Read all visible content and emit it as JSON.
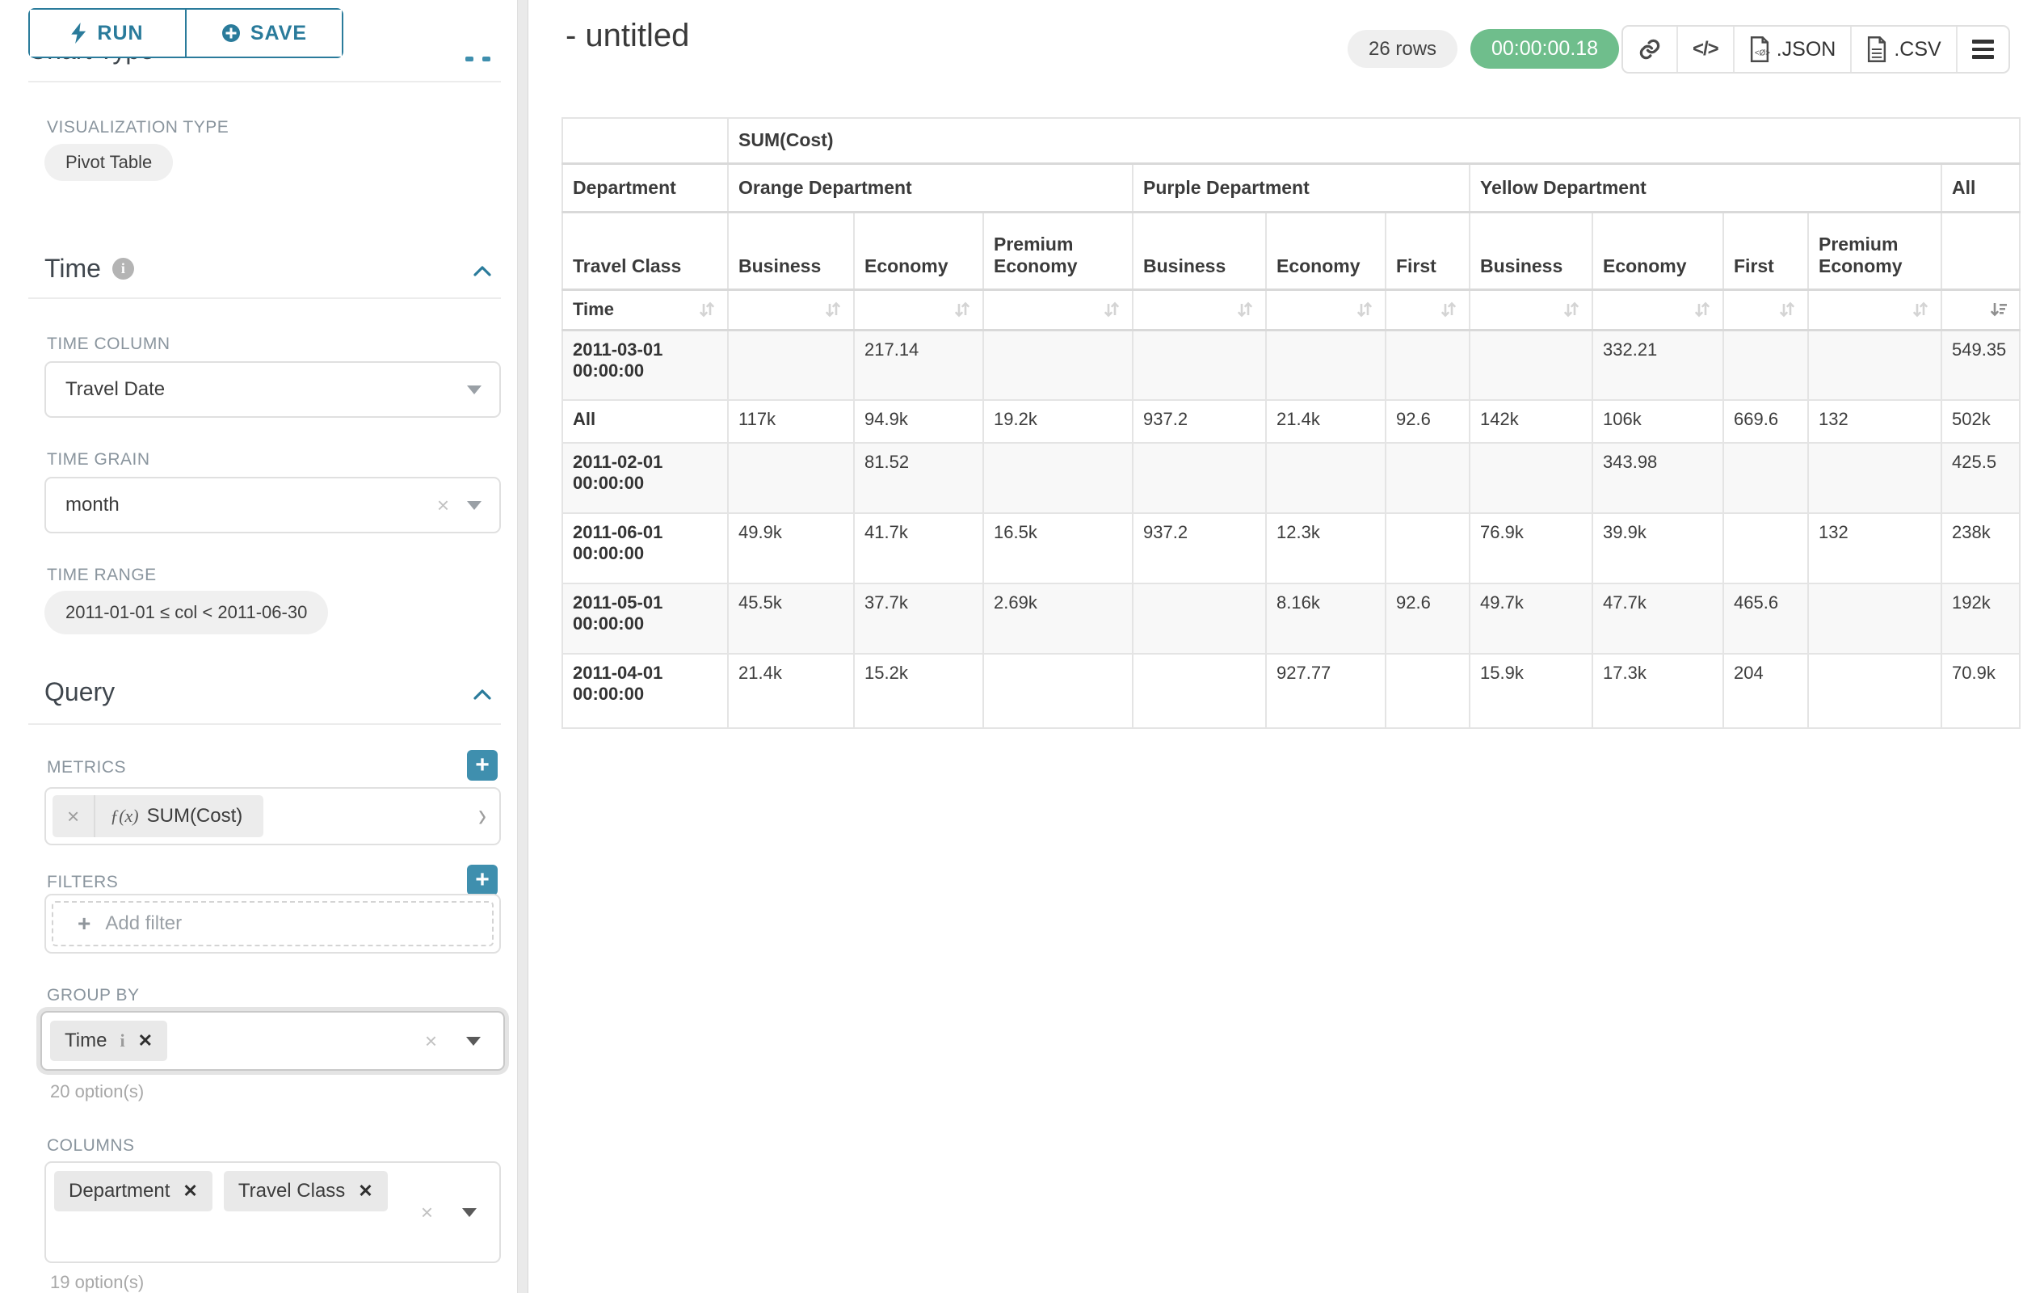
{
  "sidebar": {
    "run_label": "RUN",
    "save_label": "SAVE",
    "chart_type_heading": "Chart Type",
    "viz_type_label": "VISUALIZATION TYPE",
    "viz_type_value": "Pivot Table",
    "time": {
      "heading": "Time",
      "time_column_label": "TIME COLUMN",
      "time_column_value": "Travel Date",
      "time_grain_label": "TIME GRAIN",
      "time_grain_value": "month",
      "time_range_label": "TIME RANGE",
      "time_range_value": "2011-01-01 ≤ col < 2011-06-30"
    },
    "query": {
      "heading": "Query",
      "metrics_label": "METRICS",
      "metric_prefix": "ƒ(x)",
      "metric_value": "SUM(Cost)",
      "filters_label": "FILTERS",
      "add_filter_label": "Add filter",
      "group_by_label": "GROUP BY",
      "group_by_chips": [
        "Time"
      ],
      "group_by_hint": "20 option(s)",
      "columns_label": "COLUMNS",
      "columns_chips": [
        "Department",
        "Travel Class"
      ],
      "columns_hint": "19 option(s)"
    }
  },
  "header": {
    "title": "- untitled",
    "rows_badge": "26 rows",
    "timer_badge": "00:00:00.18",
    "export_json_label": ".JSON",
    "export_csv_label": ".CSV"
  },
  "icons": {
    "run": "bolt-icon",
    "save": "plus-circle-icon",
    "section_info": "info-icon",
    "collapse": "chevron-up-icon",
    "select_caret": "chevron-down-icon",
    "clear": "x-icon",
    "metric_expand": "chevron-right-icon",
    "add": "plus-icon",
    "share": "link-icon",
    "embed": "code-icon",
    "export_file": "file-icon",
    "menu": "hamburger-icon",
    "sort": "sort-icon",
    "sort_active": "sort-desc-icon"
  },
  "pivot_table": {
    "metric_header": "SUM(Cost)",
    "row_dim_label": "Department",
    "row_subdim_label": "Travel Class",
    "time_label": "Time",
    "all_col_label": "All",
    "sorted_by": "All",
    "sort_direction": "desc",
    "col_groups": [
      {
        "label": "Orange Department",
        "classes": [
          "Business",
          "Economy",
          "Premium Economy"
        ]
      },
      {
        "label": "Purple Department",
        "classes": [
          "Business",
          "Economy",
          "First"
        ]
      },
      {
        "label": "Yellow Department",
        "classes": [
          "Business",
          "Economy",
          "First",
          "Premium Economy"
        ]
      }
    ],
    "rows": [
      {
        "time": "2011-03-01 00:00:00",
        "values": [
          "",
          "217.14",
          "",
          "",
          "",
          "",
          "",
          "332.21",
          "",
          "",
          "549.35"
        ]
      },
      {
        "time": "All",
        "values": [
          "117k",
          "94.9k",
          "19.2k",
          "937.2",
          "21.4k",
          "92.6",
          "142k",
          "106k",
          "669.6",
          "132",
          "502k"
        ]
      },
      {
        "time": "2011-02-01 00:00:00",
        "values": [
          "",
          "81.52",
          "",
          "",
          "",
          "",
          "",
          "343.98",
          "",
          "",
          "425.5"
        ]
      },
      {
        "time": "2011-06-01 00:00:00",
        "values": [
          "49.9k",
          "41.7k",
          "16.5k",
          "937.2",
          "12.3k",
          "",
          "76.9k",
          "39.9k",
          "",
          "132",
          "238k"
        ]
      },
      {
        "time": "2011-05-01 00:00:00",
        "values": [
          "45.5k",
          "37.7k",
          "2.69k",
          "",
          "8.16k",
          "92.6",
          "49.7k",
          "47.7k",
          "465.6",
          "",
          "192k"
        ]
      },
      {
        "time": "2011-04-01 00:00:00",
        "values": [
          "21.4k",
          "15.2k",
          "",
          "",
          "927.77",
          "",
          "15.9k",
          "17.3k",
          "204",
          "",
          "70.9k"
        ]
      }
    ]
  }
}
